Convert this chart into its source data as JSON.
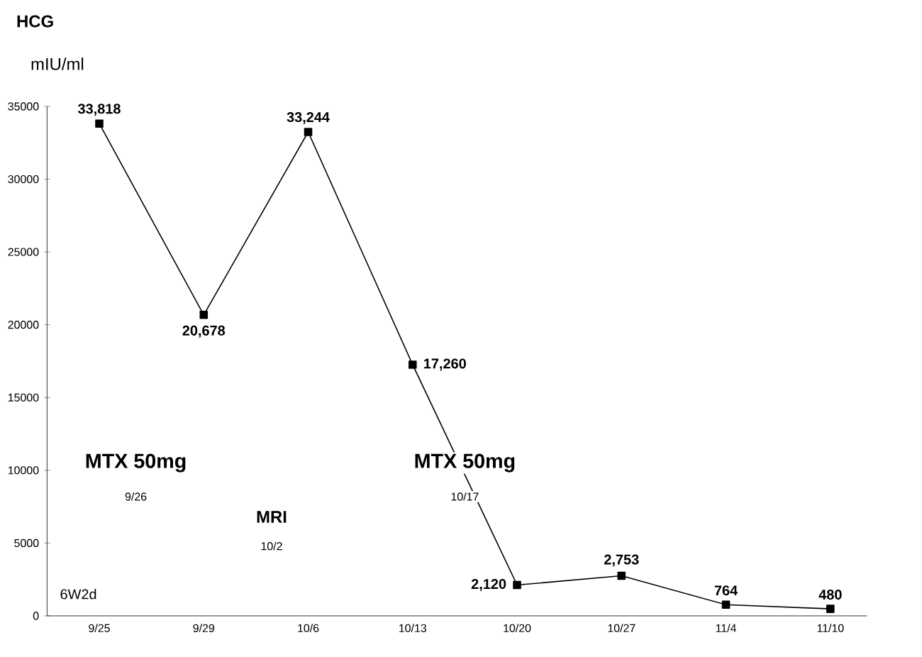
{
  "chart_data": {
    "type": "line",
    "title": "HCG",
    "ylabel": "mIU/ml",
    "categories": [
      "9/25",
      "9/29",
      "10/6",
      "10/13",
      "10/20",
      "10/27",
      "11/4",
      "11/10"
    ],
    "series": [
      {
        "color": "#000000",
        "values": [
          33818,
          20678,
          33244,
          17260,
          2120,
          2753,
          764,
          480
        ],
        "value_labels": [
          "33,818",
          "20,678",
          "33,244",
          "17,260",
          "2,120",
          "2,753",
          "764",
          "480"
        ]
      }
    ],
    "ylim": [
      0,
      35000
    ],
    "yticks": [
      0,
      5000,
      10000,
      15000,
      20000,
      25000,
      30000,
      35000
    ],
    "marker": "square",
    "line_style": "solid",
    "grid": false,
    "annotations": [
      "MTX 50mg",
      "9/26",
      "MRI",
      "10/2",
      "MTX 50mg",
      "10/17",
      "6W2d"
    ]
  }
}
